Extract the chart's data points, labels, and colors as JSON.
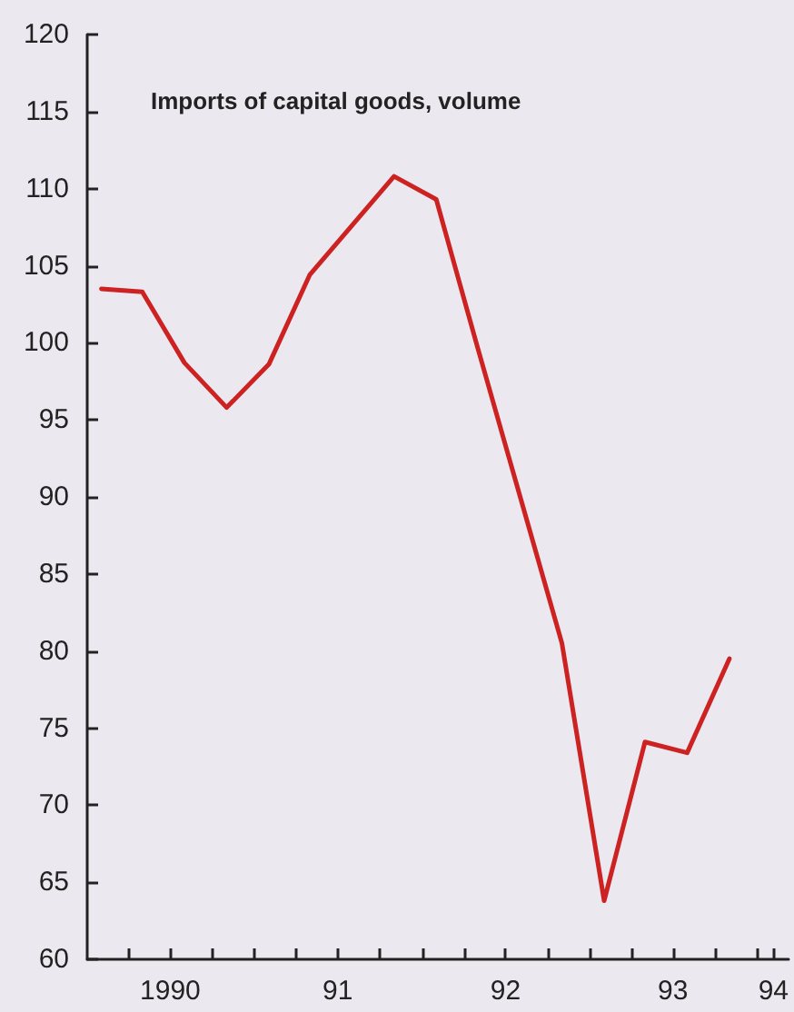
{
  "chart_data": {
    "type": "line",
    "title": "Imports of capital goods, volume",
    "x": [
      "1990-02-01",
      "1990-05-01",
      "1990-08-01",
      "1990-11-01",
      "1991-02-01",
      "1991-05-01",
      "1991-08-01",
      "1991-11-01",
      "1992-02-01",
      "1992-05-01",
      "1992-08-01",
      "1992-11-01",
      "1993-02-01",
      "1993-05-01",
      "1993-08-01",
      "1993-11-01"
    ],
    "series": [
      {
        "color": "#cc2222",
        "values": [
          103.5,
          103.3,
          98.7,
          95.8,
          98.6,
          104.4,
          107.6,
          110.8,
          109.3,
          99.7,
          90.1,
          80.5,
          63.8,
          74.1,
          73.4,
          79.5
        ]
      }
    ],
    "xlim": [
      "1990-01-01",
      "1994-03-10"
    ],
    "xticks": [
      {
        "value": "1990-04-01",
        "label": null
      },
      {
        "value": "1990-07-01",
        "label": "1990"
      },
      {
        "value": "1990-10-01",
        "label": null
      },
      {
        "value": "1991-01-01",
        "label": null
      },
      {
        "value": "1991-04-01",
        "label": null
      },
      {
        "value": "1991-07-01",
        "label": "91"
      },
      {
        "value": "1991-10-01",
        "label": null
      },
      {
        "value": "1992-01-01",
        "label": null
      },
      {
        "value": "1992-04-01",
        "label": null
      },
      {
        "value": "1992-07-01",
        "label": "92"
      },
      {
        "value": "1992-10-01",
        "label": null
      },
      {
        "value": "1993-01-01",
        "label": null
      },
      {
        "value": "1993-04-01",
        "label": null
      },
      {
        "value": "1993-07-01",
        "label": "93"
      },
      {
        "value": "1993-10-01",
        "label": null
      },
      {
        "value": "1994-01-01",
        "label": null
      },
      {
        "value": "1994-02-05",
        "label": "94"
      }
    ],
    "ylim": [
      60,
      120
    ],
    "yticks": [
      60,
      65,
      70,
      75,
      80,
      85,
      90,
      95,
      100,
      105,
      110,
      115,
      120
    ],
    "grid": false,
    "marker": "none",
    "line_style": "solid"
  }
}
